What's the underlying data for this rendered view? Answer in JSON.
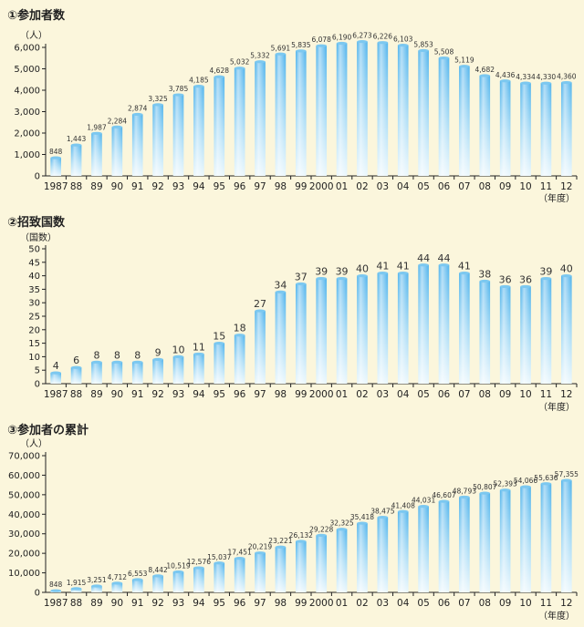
{
  "chart_data": [
    {
      "type": "bar",
      "title": "①参加者数",
      "unit": "（人）",
      "x_unit": "（年度）",
      "categories": [
        "1987",
        "88",
        "89",
        "90",
        "91",
        "92",
        "93",
        "94",
        "95",
        "96",
        "97",
        "98",
        "99",
        "2000",
        "01",
        "02",
        "03",
        "04",
        "05",
        "06",
        "07",
        "08",
        "09",
        "10",
        "11",
        "12"
      ],
      "values": [
        848,
        1443,
        1987,
        2284,
        2874,
        3325,
        3785,
        4185,
        4628,
        5032,
        5332,
        5691,
        5835,
        6078,
        6190,
        6273,
        6226,
        6103,
        5853,
        5508,
        5119,
        4682,
        4436,
        4334,
        4330,
        4360
      ],
      "value_labels": [
        "848",
        "1,443",
        "1,987",
        "2,284",
        "2,874",
        "3,325",
        "3,785",
        "4,185",
        "4,628",
        "5,032",
        "5,332",
        "5,691",
        "5,835",
        "6,078",
        "6,190",
        "6,273",
        "6,226",
        "6,103",
        "5,853",
        "5,508",
        "5,119",
        "4,682",
        "4,436",
        "4,334",
        "4,330",
        "4,360"
      ],
      "ylim": [
        0,
        6000
      ],
      "yticks": [
        0,
        1000,
        2000,
        3000,
        4000,
        5000,
        6000
      ],
      "ytick_labels": [
        "0",
        "1,000",
        "2,000",
        "3,000",
        "4,000",
        "5,000",
        "6,000"
      ],
      "grid": false
    },
    {
      "type": "bar",
      "title": "②招致国数",
      "unit": "（国数）",
      "x_unit": "（年度）",
      "categories": [
        "1987",
        "88",
        "89",
        "90",
        "91",
        "92",
        "93",
        "94",
        "95",
        "96",
        "97",
        "98",
        "99",
        "2000",
        "01",
        "02",
        "03",
        "04",
        "05",
        "06",
        "07",
        "08",
        "09",
        "10",
        "11",
        "12"
      ],
      "values": [
        4,
        6,
        8,
        8,
        8,
        9,
        10,
        11,
        15,
        18,
        27,
        34,
        37,
        39,
        39,
        40,
        41,
        41,
        44,
        44,
        41,
        38,
        36,
        36,
        39,
        40
      ],
      "value_labels": [
        "4",
        "6",
        "8",
        "8",
        "8",
        "9",
        "10",
        "11",
        "15",
        "18",
        "27",
        "34",
        "37",
        "39",
        "39",
        "40",
        "41",
        "41",
        "44",
        "44",
        "41",
        "38",
        "36",
        "36",
        "39",
        "40"
      ],
      "ylim": [
        0,
        50
      ],
      "yticks": [
        0,
        5,
        10,
        15,
        20,
        25,
        30,
        35,
        40,
        45,
        50
      ],
      "ytick_labels": [
        "0",
        "5",
        "10",
        "15",
        "20",
        "25",
        "30",
        "35",
        "40",
        "45",
        "50"
      ],
      "grid": false
    },
    {
      "type": "bar",
      "title": "③参加者の累計",
      "unit": "（人）",
      "x_unit": "（年度）",
      "categories": [
        "1987",
        "88",
        "89",
        "90",
        "91",
        "92",
        "93",
        "94",
        "95",
        "96",
        "97",
        "98",
        "99",
        "2000",
        "01",
        "02",
        "03",
        "04",
        "05",
        "06",
        "07",
        "08",
        "09",
        "10",
        "11",
        "12"
      ],
      "values": [
        848,
        1915,
        3251,
        4712,
        6553,
        8442,
        10519,
        12576,
        15037,
        17451,
        20219,
        23221,
        26132,
        29228,
        32325,
        35418,
        38475,
        41408,
        44031,
        46607,
        48793,
        50807,
        52393,
        54066,
        55636,
        57355
      ],
      "value_labels": [
        "848",
        "1,915",
        "3,251",
        "4,712",
        "6,553",
        "8,442",
        "10,519",
        "12,576",
        "15,037",
        "17,451",
        "20,219",
        "23,221",
        "26,132",
        "29,228",
        "32,325",
        "35,418",
        "38,475",
        "41,408",
        "44,031",
        "46,607",
        "48,793",
        "50,807",
        "52,393",
        "54,066",
        "55,636",
        "57,355"
      ],
      "ylim": [
        0,
        70000
      ],
      "yticks": [
        0,
        10000,
        20000,
        30000,
        40000,
        50000,
        60000,
        70000
      ],
      "ytick_labels": [
        "0",
        "10,000",
        "20,000",
        "30,000",
        "40,000",
        "50,000",
        "60,000",
        "70,000"
      ],
      "grid": false
    }
  ]
}
